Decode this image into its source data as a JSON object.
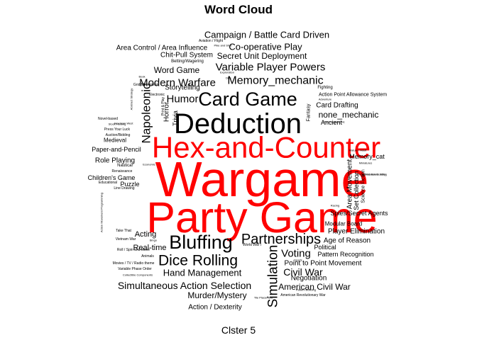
{
  "chart_data": {
    "type": "wordcloud",
    "title": "Word Cloud",
    "caption": "Clster 5",
    "colors": {
      "highlight": "#ff0000",
      "normal": "#000000"
    },
    "words": [
      {
        "text": "Wargame",
        "weight": 100,
        "highlight": true
      },
      {
        "text": "Party Game",
        "weight": 88,
        "highlight": true
      },
      {
        "text": "Hex-and-Counter",
        "weight": 72,
        "highlight": true
      },
      {
        "text": "Deduction",
        "weight": 61
      },
      {
        "text": "Bluffing",
        "weight": 43
      },
      {
        "text": "Card Game",
        "weight": 42
      },
      {
        "text": "Dice Rolling",
        "weight": 35
      },
      {
        "text": "Partnerships",
        "weight": 32
      },
      {
        "text": "Simulation",
        "weight": 27,
        "vertical": true
      },
      {
        "text": "Napoleonic",
        "weight": 24,
        "vertical": true
      },
      {
        "text": "Memory_mechanic",
        "weight": 23
      },
      {
        "text": "Modern Warfare",
        "weight": 23
      },
      {
        "text": "Variable Player Powers",
        "weight": 23
      },
      {
        "text": "Humor",
        "weight": 21
      },
      {
        "text": "Civil War",
        "weight": 20
      },
      {
        "text": "Voting",
        "weight": 20
      },
      {
        "text": "Hand Management",
        "weight": 19
      },
      {
        "text": "Simultaneous Action Selection",
        "weight": 19
      },
      {
        "text": "Campaign / Battle Card Driven",
        "weight": 18
      },
      {
        "text": "Co-operative Play",
        "weight": 18
      },
      {
        "text": "Secret Unit Deployment",
        "weight": 17
      },
      {
        "text": "none_mechanic",
        "weight": 17
      },
      {
        "text": "Word Game",
        "weight": 17
      },
      {
        "text": "Murder/Mystery",
        "weight": 17
      },
      {
        "text": "American Civil War",
        "weight": 17
      },
      {
        "text": "Real-time",
        "weight": 15
      },
      {
        "text": "Acting",
        "weight": 15
      },
      {
        "text": "Storytelling",
        "weight": 14
      },
      {
        "text": "Area Movement",
        "weight": 14,
        "vertical": true
      },
      {
        "text": "Action / Dexterity",
        "weight": 14
      },
      {
        "text": "Negotiation",
        "weight": 14
      },
      {
        "text": "Horror",
        "weight": 14,
        "vertical": true
      },
      {
        "text": "Player Elimination",
        "weight": 13
      },
      {
        "text": "Age of Reason",
        "weight": 13
      },
      {
        "text": "Point to Point Movement",
        "weight": 13
      },
      {
        "text": "Role Playing",
        "weight": 13
      },
      {
        "text": "Paper-and-Pencil",
        "weight": 13
      },
      {
        "text": "Trivia",
        "weight": 12,
        "vertical": true
      },
      {
        "text": "Set Collection",
        "weight": 12,
        "vertical": true
      },
      {
        "text": "Card Drafting",
        "weight": 12
      },
      {
        "text": "Chit-Pull System",
        "weight": 12
      },
      {
        "text": "Area Control / Area Influence",
        "weight": 12
      },
      {
        "text": "Spies/Secret Agents",
        "weight": 12
      },
      {
        "text": "Pattern Recognition",
        "weight": 12
      },
      {
        "text": "Ancient",
        "weight": 11
      },
      {
        "text": "Children's Game",
        "weight": 11
      },
      {
        "text": "Memory_cat",
        "weight": 11
      },
      {
        "text": "Political",
        "weight": 11
      },
      {
        "text": "Puzzle",
        "weight": 11
      },
      {
        "text": "Modular Board",
        "weight": 10
      },
      {
        "text": "Medieval",
        "weight": 10
      },
      {
        "text": "Fantasy",
        "weight": 10,
        "vertical": true
      },
      {
        "text": "Science Fiction",
        "weight": 10,
        "vertical": true
      },
      {
        "text": "Action Point Allowance System",
        "weight": 9
      },
      {
        "text": "Fighting",
        "weight": 8
      },
      {
        "text": "Print & Play",
        "weight": 8,
        "vertical": true
      },
      {
        "text": "Nautical",
        "weight": 8
      },
      {
        "text": "Betting/Wagering",
        "weight": 8
      },
      {
        "text": "Aviation / Flight",
        "weight": 8
      },
      {
        "text": "Press Your Luck",
        "weight": 8
      },
      {
        "text": "Auction/Bidding",
        "weight": 8
      },
      {
        "text": "Grid Movement",
        "weight": 8
      },
      {
        "text": "Electronic",
        "weight": 8
      },
      {
        "text": "Novel-based",
        "weight": 7
      },
      {
        "text": "Movies / TV / Radio theme",
        "weight": 8
      },
      {
        "text": "Roll / Spin and Move",
        "weight": 8
      },
      {
        "text": "Vietnam War",
        "weight": 8
      },
      {
        "text": "Take That",
        "weight": 8
      },
      {
        "text": "Line Drawing",
        "weight": 7
      },
      {
        "text": "Renaissance",
        "weight": 7
      },
      {
        "text": "Educational",
        "weight": 7
      },
      {
        "text": "World War I",
        "weight": 7
      },
      {
        "text": "Animals",
        "weight": 7
      },
      {
        "text": "Variable Phase Order",
        "weight": 7
      },
      {
        "text": "Collectible Components",
        "weight": 6
      },
      {
        "text": "Pattern Building",
        "weight": 6
      },
      {
        "text": "American Revolutionary War",
        "weight": 7
      },
      {
        "text": "Abstract Strategy",
        "weight": 7,
        "vertical": true
      },
      {
        "text": "Action Movement Programming",
        "weight": 6,
        "vertical": true
      },
      {
        "text": "Post-Napoleonic",
        "weight": 6
      },
      {
        "text": "Pike and Shot",
        "weight": 6
      },
      {
        "text": "Adventure",
        "weight": 6
      },
      {
        "text": "Exploration",
        "weight": 6
      },
      {
        "text": "Dice",
        "weight": 6
      },
      {
        "text": "Stock Holding",
        "weight": 6
      },
      {
        "text": "Book",
        "weight": 6
      },
      {
        "text": "Bingo",
        "weight": 6
      },
      {
        "text": "Sports",
        "weight": 6
      },
      {
        "text": "Route/Network Building",
        "weight": 6
      },
      {
        "text": "Miniatures",
        "weight": 6
      },
      {
        "text": "Comic Book / Strip",
        "weight": 6
      },
      {
        "text": "American West",
        "weight": 6
      },
      {
        "text": "Racing",
        "weight": 6
      },
      {
        "text": "Tile Placement",
        "weight": 6
      },
      {
        "text": "Economic",
        "weight": 6
      },
      {
        "text": "Mature / Adult",
        "weight": 6
      }
    ]
  }
}
